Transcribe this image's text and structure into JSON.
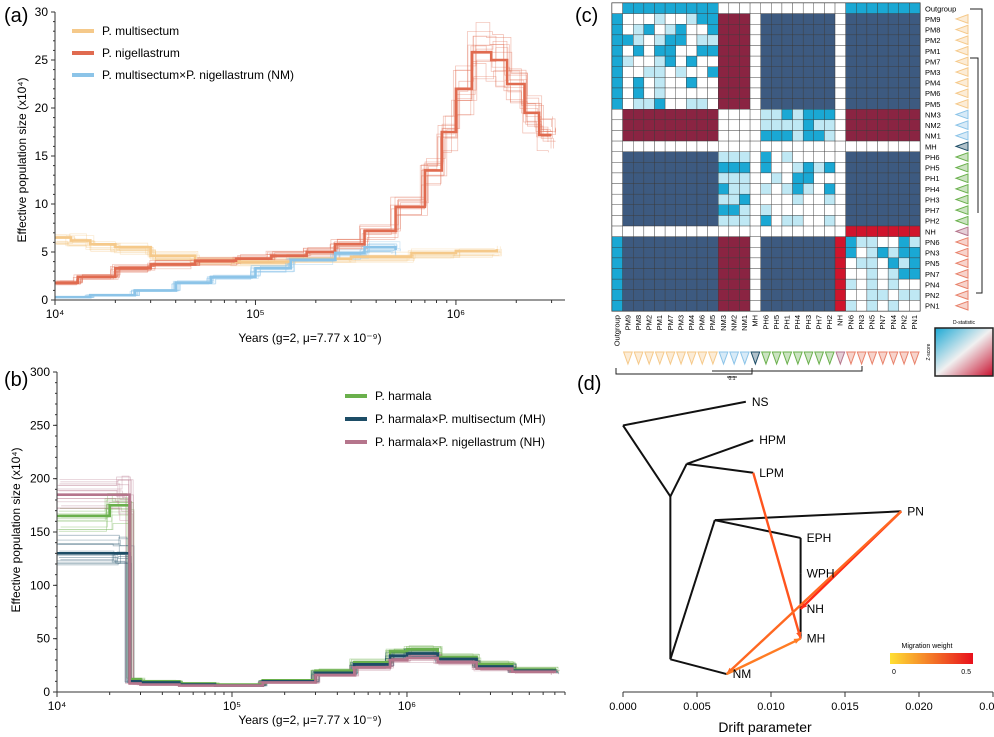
{
  "chart_data": [
    {
      "panel": "(a)",
      "type": "line",
      "xscale": "log",
      "xlim": [
        10000,
        3500000
      ],
      "ylim": [
        0,
        30
      ],
      "ylabel": "Effective population size (x10⁴)",
      "xlabel": "Years (g=2, μ=7.77 x 10⁻⁹)",
      "xticks": [
        "10⁴",
        "10⁵",
        "10⁶"
      ],
      "yticks": [
        0,
        5,
        10,
        15,
        20,
        25,
        30
      ],
      "legend_position": "top-left",
      "series": [
        {
          "name": "P. multisectum",
          "color": "#f5c98a",
          "x": [
            10000,
            12000,
            15000,
            20000,
            30000,
            50000,
            80000,
            150000,
            300000,
            600000,
            1000000,
            1600000
          ],
          "y": [
            6.5,
            6.2,
            5.8,
            5.5,
            4.6,
            4.1,
            4.0,
            4.3,
            4.5,
            4.9,
            5.1,
            5.3
          ]
        },
        {
          "name": "P. nigellastrum",
          "color": "#e06b50",
          "x": [
            10000,
            13000,
            20000,
            30000,
            50000,
            80000,
            120000,
            180000,
            250000,
            350000,
            500000,
            700000,
            850000,
            1000000,
            1200000,
            1500000,
            1800000,
            2200000,
            2600000,
            3000000
          ],
          "y": [
            1.8,
            2.4,
            3.3,
            3.7,
            4.1,
            4.3,
            4.6,
            5.0,
            5.8,
            7.2,
            9.7,
            13.5,
            17.5,
            22.0,
            25.8,
            25.0,
            22.5,
            19.5,
            17.2,
            17.2
          ]
        },
        {
          "name": "P. multisectum×P. nigellastrum (NM)",
          "color": "#8cc4e8",
          "x": [
            10000,
            15000,
            25000,
            40000,
            60000,
            100000,
            150000,
            250000,
            350000,
            500000
          ],
          "y": [
            0.3,
            0.5,
            1.0,
            1.8,
            2.4,
            3.3,
            4.2,
            4.9,
            5.5,
            5.2
          ]
        }
      ]
    },
    {
      "panel": "(b)",
      "type": "line",
      "xscale": "log",
      "xlim": [
        10000,
        8000000
      ],
      "ylim": [
        0,
        300
      ],
      "ylabel": "Effective population size (x10⁴)",
      "xlabel": "Years (g=2, μ=7.77 x 10⁻⁹)",
      "xticks": [
        "10⁴",
        "10⁵",
        "10⁶"
      ],
      "yticks": [
        0,
        50,
        100,
        150,
        200,
        250,
        300
      ],
      "legend_position": "top-right",
      "series": [
        {
          "name": "P. harmala",
          "color": "#6ab04c",
          "x": [
            10000,
            20000,
            26000,
            30000,
            50000,
            80000,
            150000,
            300000,
            500000,
            800000,
            1000000,
            1500000,
            2500000,
            4000000,
            7000000
          ],
          "y": [
            165,
            175,
            12,
            10,
            8,
            7,
            11,
            20,
            28,
            38,
            40,
            33,
            26,
            21,
            20
          ]
        },
        {
          "name": "P. harmala×P. multisectum (MH)",
          "color": "#1d4d66",
          "x": [
            10000,
            22000,
            26000,
            30000,
            50000,
            80000,
            150000,
            300000,
            500000,
            800000,
            1000000,
            1500000,
            2500000,
            4000000,
            7000000
          ],
          "y": [
            130,
            130,
            10,
            9,
            7,
            6,
            10,
            18,
            26,
            34,
            36,
            31,
            24,
            20,
            19
          ]
        },
        {
          "name": "P. harmala×P. nigellastrum (NH)",
          "color": "#b5758c",
          "x": [
            10000,
            23000,
            26000,
            30000,
            50000,
            80000,
            150000,
            300000,
            500000,
            800000,
            1000000,
            1500000,
            2500000,
            4000000,
            7000000
          ],
          "y": [
            185,
            185,
            8,
            7,
            6,
            6,
            9,
            16,
            23,
            30,
            32,
            28,
            22,
            19,
            18
          ]
        }
      ]
    },
    {
      "panel": "(c)",
      "type": "heatmap",
      "rows": [
        "Outgroup",
        "PM9",
        "PM8",
        "PM2",
        "PM1",
        "PM7",
        "PM3",
        "PM4",
        "PM6",
        "PM5",
        "NM3",
        "NM2",
        "NM1",
        "MH",
        "PH6",
        "PH5",
        "PH1",
        "PH4",
        "PH3",
        "PH7",
        "PH2",
        "NH",
        "PN6",
        "PN3",
        "PN5",
        "PN7",
        "PN4",
        "PN2",
        "PN1"
      ],
      "columns": [
        "Outgroup",
        "PM9",
        "PM8",
        "PM2",
        "PM1",
        "PM7",
        "PM3",
        "PM4",
        "PM6",
        "PM5",
        "NM3",
        "NM2",
        "NM1",
        "MH",
        "PH6",
        "PH5",
        "PH1",
        "PH4",
        "PH3",
        "PH7",
        "PH2",
        "NH",
        "PN6",
        "PN3",
        "PN5",
        "PN7",
        "PN4",
        "PN2",
        "PN1"
      ],
      "groups": [
        {
          "members": [
            "PM9",
            "PM8",
            "PM2",
            "PM1",
            "PM7",
            "PM3",
            "PM4",
            "PM6",
            "PM5"
          ],
          "color": "#f5c98a"
        },
        {
          "members": [
            "NM3",
            "NM2",
            "NM1"
          ],
          "color": "#8cc4e8"
        },
        {
          "members": [
            "MH"
          ],
          "color": "#1d4d66"
        },
        {
          "members": [
            "PH6",
            "PH5",
            "PH1",
            "PH4",
            "PH3",
            "PH7",
            "PH2"
          ],
          "color": "#6ab04c"
        },
        {
          "members": [
            "NH"
          ],
          "color": "#b5758c"
        },
        {
          "members": [
            "PN6",
            "PN3",
            "PN5",
            "PN7",
            "PN4",
            "PN2",
            "PN1"
          ],
          "color": "#e8826b"
        }
      ],
      "colors": {
        "strong": "#3d5a80",
        "cyan": "#1aa8d4",
        "light": "#bfe8f4",
        "pale": "#e8f6fb",
        "red": "#d0142c",
        "maroon": "#8a2442",
        "empty": "#ffffff"
      },
      "legend_title": "D-statistic",
      "legend_side_label": "Z-score",
      "scale_bar": "0.1"
    },
    {
      "panel": "(d)",
      "type": "scatter",
      "xlabel": "Drift parameter",
      "xlim": [
        0,
        0.025
      ],
      "xticks": [
        "0.000",
        "0.005",
        "0.010",
        "0.015",
        "0.020",
        "0.025"
      ],
      "nodes": [
        {
          "name": "NS",
          "x": 0.0083,
          "y": 0.94
        },
        {
          "name": "HPM",
          "x": 0.0088,
          "y": 0.81
        },
        {
          "name": "LPM",
          "x": 0.0088,
          "y": 0.7
        },
        {
          "name": "PN",
          "x": 0.0188,
          "y": 0.57
        },
        {
          "name": "EPH",
          "x": 0.012,
          "y": 0.48
        },
        {
          "name": "WPH",
          "x": 0.012,
          "y": 0.36
        },
        {
          "name": "NH",
          "x": 0.012,
          "y": 0.24
        },
        {
          "name": "MH",
          "x": 0.012,
          "y": 0.14
        },
        {
          "name": "NM",
          "x": 0.007,
          "y": 0.02
        }
      ],
      "tree_edges": [
        [
          0.0,
          0.88,
          0.0033,
          0.97
        ],
        [
          0.0,
          0.88,
          0.0032,
          0.66
        ],
        [
          0.0032,
          0.66,
          0.0045,
          0.76
        ],
        [
          0.0045,
          0.76,
          0.0044,
          0.8
        ],
        [
          0.0045,
          0.76,
          0.0044,
          0.7
        ],
        [
          0.0032,
          0.66,
          0.0032,
          0.08
        ],
        [
          0.0032,
          0.08,
          0.0035,
          0.02
        ],
        [
          0.0032,
          0.08,
          0.006,
          0.55
        ],
        [
          0.006,
          0.55,
          0.0093,
          0.57
        ],
        [
          0.006,
          0.55,
          0.006,
          0.14
        ],
        [
          0.006,
          0.14,
          0.006,
          0.24
        ]
      ],
      "migration_edges": [
        {
          "from": "LPM",
          "to": "MH",
          "weight": 0.35
        },
        {
          "from": "PN",
          "to": "NH",
          "weight": 0.45
        },
        {
          "from": "PN",
          "to": "NM",
          "weight": 0.3
        },
        {
          "from": "NM",
          "to": "MH",
          "weight": 0.25
        }
      ],
      "migration_legend": {
        "title": "Migration  weight",
        "min_label": "0",
        "max_label": "0.5",
        "min_color": "#ffe033",
        "max_color": "#e8101c"
      }
    }
  ]
}
